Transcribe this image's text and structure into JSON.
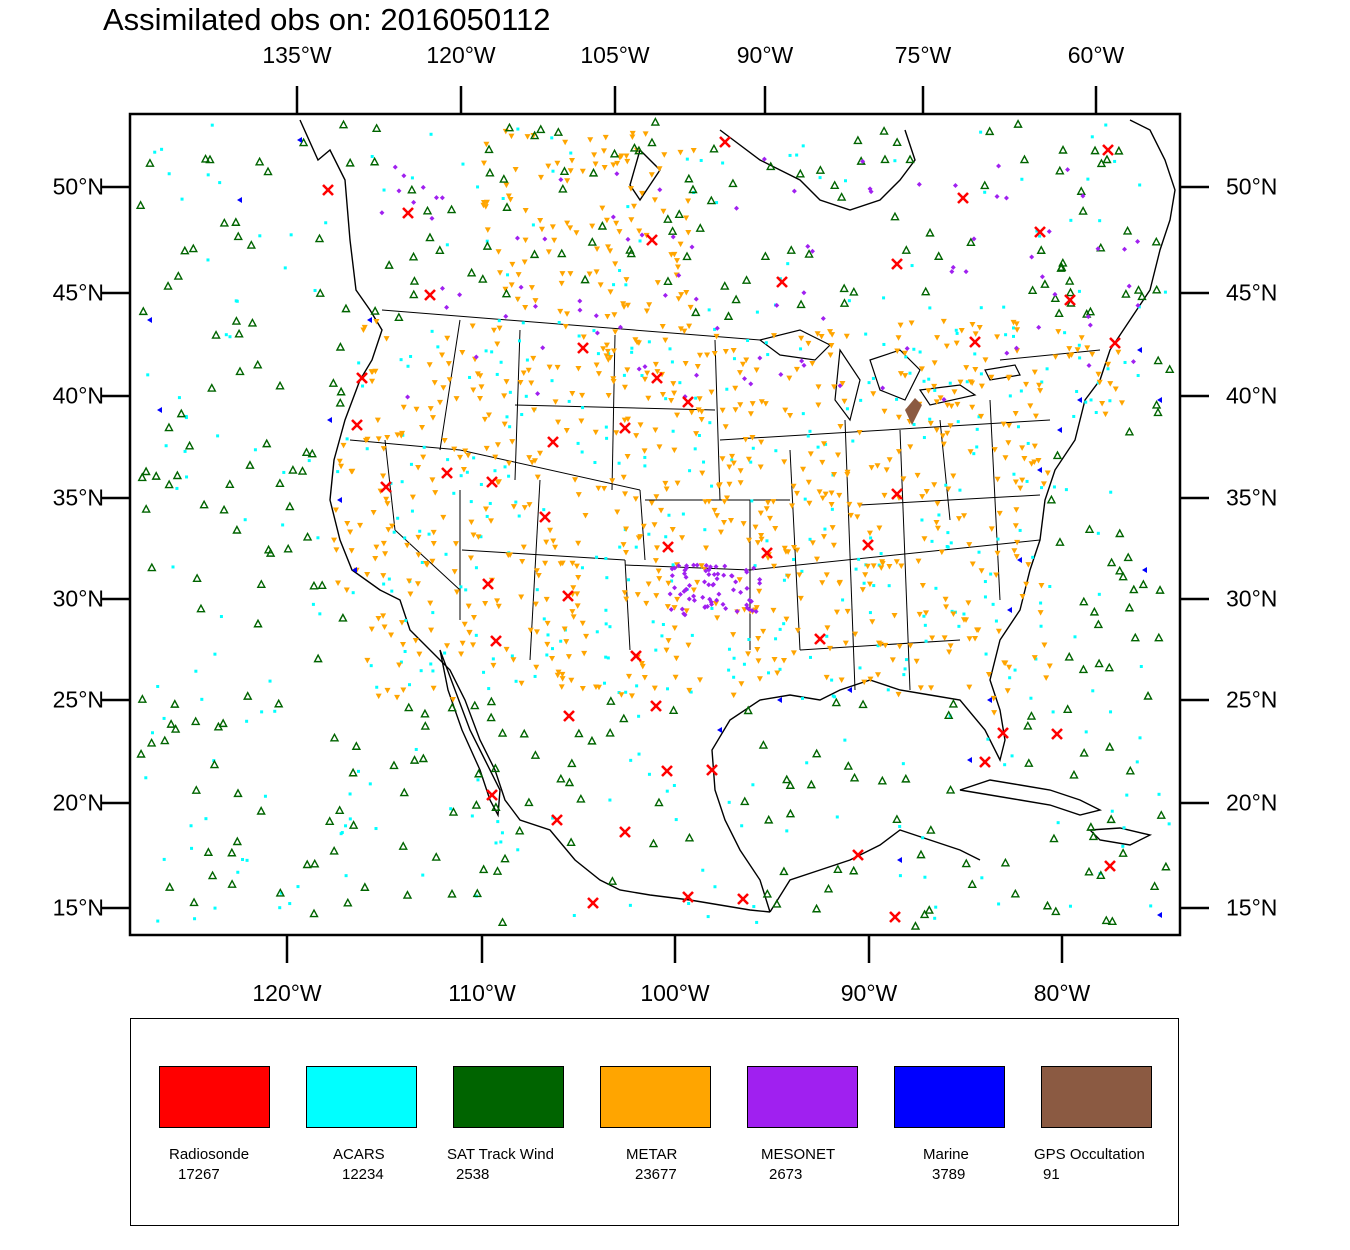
{
  "title": "Assimilated obs on: 2016050112",
  "axes": {
    "top_labels": [
      "135°W",
      "120°W",
      "105°W",
      "90°W",
      "75°W",
      "60°W"
    ],
    "bottom_labels": [
      "120°W",
      "110°W",
      "100°W",
      "90°W",
      "80°W"
    ],
    "left_labels": [
      "50°N",
      "45°N",
      "40°N",
      "35°N",
      "30°N",
      "25°N",
      "20°N",
      "15°N"
    ],
    "right_labels": [
      "50°N",
      "45°N",
      "40°N",
      "35°N",
      "30°N",
      "25°N",
      "20°N",
      "15°N"
    ]
  },
  "legend": [
    {
      "name": "Radiosonde",
      "count": "17267",
      "color": "#ff0000",
      "marker": "x-mark"
    },
    {
      "name": "ACARS",
      "count": "12234",
      "color": "#00ffff",
      "marker": "square-dot"
    },
    {
      "name": "SAT Track Wind",
      "count": "2538",
      "color": "#006400",
      "marker": "open-triangle"
    },
    {
      "name": "METAR",
      "count": "23677",
      "color": "#ffa500",
      "marker": "down-triangle"
    },
    {
      "name": "MESONET",
      "count": "2673",
      "color": "#a020f0",
      "marker": "diamond"
    },
    {
      "name": "Marine",
      "count": "3789",
      "color": "#0000ff",
      "marker": "left-triangle"
    },
    {
      "name": "GPS Occultation",
      "count": "91",
      "color": "#8b5a42",
      "marker": "dot"
    }
  ]
}
